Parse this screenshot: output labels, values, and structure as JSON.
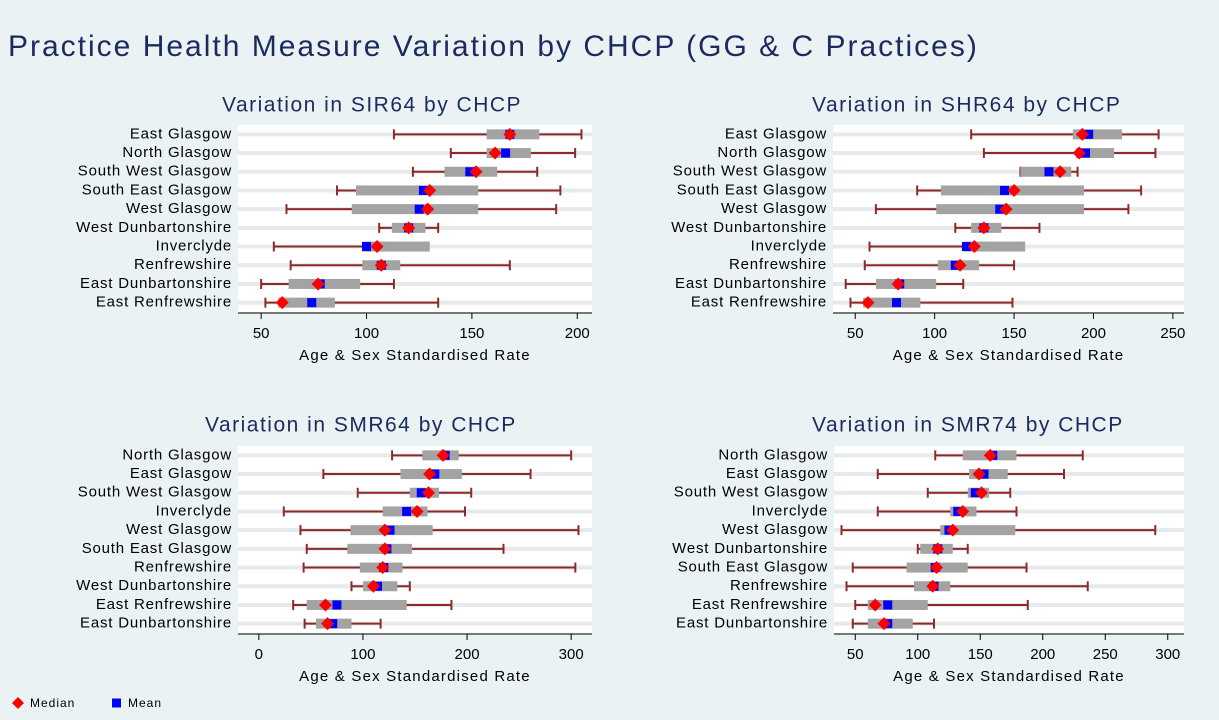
{
  "title": "Practice Health Measure Variation by CHCP (GG & C Practices)",
  "legend": [
    {
      "name": "Median",
      "color": "#ff0000"
    },
    {
      "name": "Mean",
      "color": "#0000ff"
    }
  ],
  "chart_data": [
    {
      "type": "box",
      "title": "Variation in SIR64 by CHCP",
      "x_label": "Age & Sex Standardised Rate",
      "categories": [
        "East Glasgow",
        "North Glasgow",
        "South West Glasgow",
        "South East Glasgow",
        "West Glasgow",
        "West Dunbartonshire",
        "Inverclyde",
        "Renfrewshire",
        "East Dunbartonshire",
        "East Renfrewshire"
      ],
      "min": [
        113,
        140,
        122,
        86,
        62,
        106,
        56,
        64,
        50,
        52
      ],
      "q1": [
        157,
        157,
        137,
        95,
        93,
        112,
        98,
        98,
        63,
        58
      ],
      "q3": [
        182,
        178,
        162,
        153,
        153,
        128,
        130,
        116,
        97,
        85
      ],
      "max": [
        202,
        199,
        181,
        192,
        190,
        134,
        128,
        168,
        113,
        134
      ],
      "median": [
        168,
        161,
        152,
        130,
        129,
        120,
        105,
        107,
        77,
        60
      ],
      "mean": [
        168,
        166,
        149,
        127,
        125,
        120,
        100,
        107,
        78,
        74
      ],
      "xlim": [
        39,
        207
      ],
      "xticks": [
        50,
        100,
        150,
        200
      ]
    },
    {
      "type": "box",
      "title": "Variation in SHR64 by CHCP",
      "x_label": "Age & Sex Standardised Rate",
      "categories": [
        "East Glasgow",
        "North Glasgow",
        "South West Glasgow",
        "South East Glasgow",
        "West Glasgow",
        "West Dunbartonshire",
        "Inverclyde",
        "Renfrewshire",
        "East Dunbartonshire",
        "East Renfrewshire"
      ],
      "min": [
        123,
        131,
        154,
        89,
        63,
        113,
        59,
        56,
        44,
        47
      ],
      "q1": [
        187,
        189,
        154,
        104,
        101,
        123,
        118,
        102,
        63,
        55
      ],
      "q3": [
        218,
        213,
        186,
        194,
        194,
        142,
        157,
        128,
        101,
        91
      ],
      "max": [
        241,
        239,
        190,
        230,
        222,
        166,
        155,
        150,
        118,
        149
      ],
      "median": [
        193,
        191,
        179,
        150,
        145,
        131,
        125,
        116,
        77,
        58
      ],
      "mean": [
        197,
        195,
        172,
        144,
        141,
        131,
        120,
        113,
        78,
        76
      ],
      "xlim": [
        36,
        257
      ],
      "xticks": [
        50,
        100,
        150,
        200,
        250
      ]
    },
    {
      "type": "box",
      "title": "Variation in SMR64 by CHCP",
      "x_label": "Age & Sex Standardised Rate",
      "categories": [
        "North Glasgow",
        "East Glasgow",
        "South West Glasgow",
        "Inverclyde",
        "West Glasgow",
        "South East Glasgow",
        "Renfrewshire",
        "West Dunbartonshire",
        "East Renfrewshire",
        "East Dunbartonshire"
      ],
      "min": [
        128,
        62,
        95,
        24,
        40,
        46,
        43,
        89,
        33,
        44
      ],
      "q1": [
        157,
        136,
        145,
        119,
        88,
        85,
        97,
        100,
        46,
        55
      ],
      "q3": [
        192,
        195,
        173,
        162,
        167,
        147,
        138,
        133,
        142,
        89
      ],
      "max": [
        300,
        261,
        204,
        198,
        307,
        235,
        304,
        145,
        185,
        117
      ],
      "median": [
        177,
        164,
        163,
        152,
        121,
        121,
        119,
        110,
        64,
        66
      ],
      "mean": [
        179,
        169,
        156,
        142,
        126,
        123,
        120,
        114,
        75,
        71
      ],
      "xlim": [
        -20,
        320
      ],
      "xticks": [
        0,
        100,
        200,
        300
      ]
    },
    {
      "type": "box",
      "title": "Variation in SMR74 by CHCP",
      "x_label": "Age & Sex Standardised Rate",
      "categories": [
        "North Glasgow",
        "East Glasgow",
        "South West Glasgow",
        "Inverclyde",
        "West Glasgow",
        "West Dunbartonshire",
        "South East Glasgow",
        "Renfrewshire",
        "East Renfrewshire",
        "East Dunbartonshire"
      ],
      "min": [
        114,
        68,
        108,
        68,
        39,
        100,
        48,
        43,
        50,
        48
      ],
      "q1": [
        136,
        141,
        140,
        126,
        118,
        102,
        91,
        97,
        60,
        60
      ],
      "q3": [
        179,
        172,
        157,
        147,
        178,
        128,
        140,
        126,
        108,
        96
      ],
      "max": [
        232,
        217,
        174,
        179,
        290,
        140,
        187,
        236,
        188,
        113
      ],
      "median": [
        158,
        149,
        151,
        136,
        128,
        116,
        115,
        112,
        66,
        73
      ],
      "mean": [
        160,
        153,
        146,
        132,
        125,
        116,
        114,
        113,
        76,
        76
      ],
      "xlim": [
        33,
        313
      ],
      "xticks": [
        50,
        100,
        150,
        200,
        250,
        300
      ]
    }
  ]
}
